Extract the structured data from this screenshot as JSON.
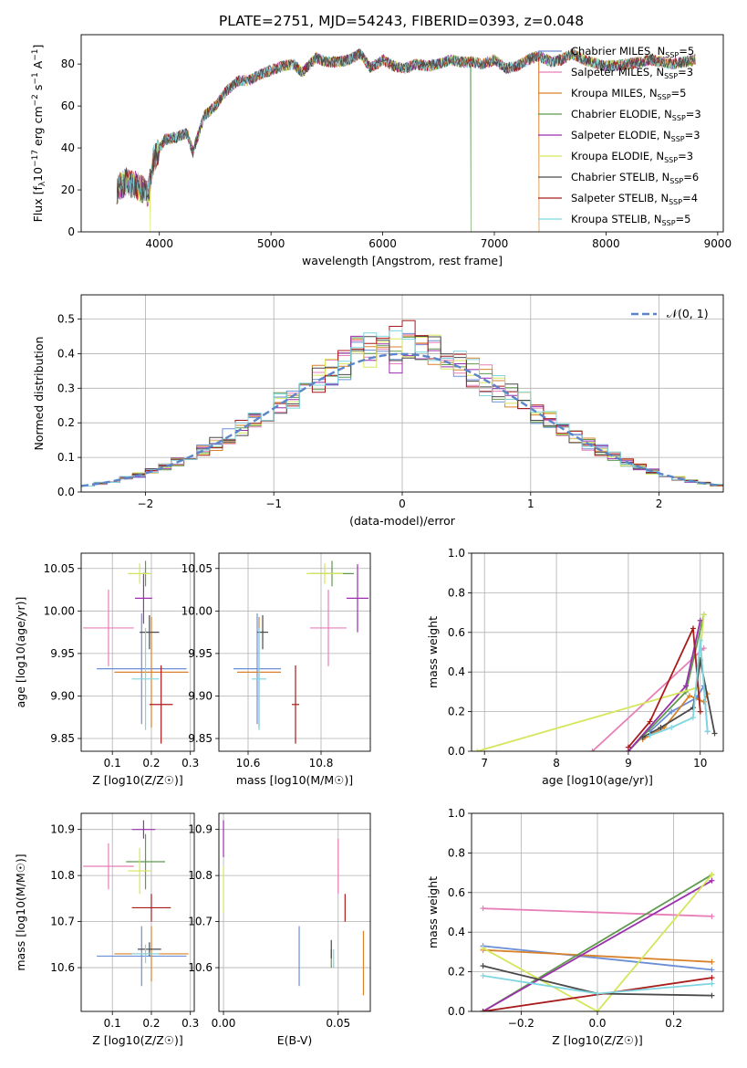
{
  "title": "PLATE=2751, MJD=54243, FIBERID=0393, z=0.048",
  "models": [
    {
      "name": "Chabrier MILES, N",
      "nssp": "5",
      "color": "#6b8fd6"
    },
    {
      "name": "Salpeter MILES, N",
      "nssp": "3",
      "color": "#e87fb8"
    },
    {
      "name": "Kroupa MILES, N",
      "nssp": "5",
      "color": "#d9822b"
    },
    {
      "name": "Chabrier ELODIE, N",
      "nssp": "3",
      "color": "#5f9a4e"
    },
    {
      "name": "Salpeter ELODIE, N",
      "nssp": "3",
      "color": "#9b2fae"
    },
    {
      "name": "Kroupa ELODIE, N",
      "nssp": "3",
      "color": "#d6e65b"
    },
    {
      "name": "Chabrier STELIB, N",
      "nssp": "6",
      "color": "#4a4a4a"
    },
    {
      "name": "Salpeter STELIB, N",
      "nssp": "4",
      "color": "#a81c1c"
    },
    {
      "name": "Kroupa STELIB, N",
      "nssp": "5",
      "color": "#7fd6e0"
    }
  ],
  "nssp_sub": "SSP",
  "chart_data": [
    {
      "id": "spectrum",
      "type": "line",
      "xlabel": "wavelength [Angstrom, rest frame]",
      "ylabel_parts": {
        "pre": "Flux [f",
        "sub1": "λ",
        "mid": "10",
        "sup1": "−17",
        "post1": " erg cm",
        "sup2": "−2",
        "post2": " s",
        "sup3": "−1",
        "post3": " A",
        "sup4": "−1",
        "end": "]"
      },
      "xlim": [
        3300,
        9050
      ],
      "ylim": [
        0,
        94
      ],
      "xticks": [
        "4000",
        "5000",
        "6000",
        "7000",
        "8000",
        "9000"
      ],
      "xtick_values": [
        4000,
        5000,
        6000,
        7000,
        8000,
        9000
      ],
      "yticks": [
        "0",
        "20",
        "40",
        "60",
        "80"
      ],
      "ytick_values": [
        0,
        20,
        40,
        60,
        80
      ],
      "continuum": [
        [
          3620,
          20
        ],
        [
          3700,
          24
        ],
        [
          3800,
          22
        ],
        [
          3900,
          18
        ],
        [
          3950,
          35
        ],
        [
          4050,
          44
        ],
        [
          4150,
          45
        ],
        [
          4250,
          47
        ],
        [
          4300,
          38
        ],
        [
          4400,
          55
        ],
        [
          4500,
          60
        ],
        [
          4600,
          67
        ],
        [
          4700,
          72
        ],
        [
          4800,
          72
        ],
        [
          4900,
          75
        ],
        [
          5000,
          77
        ],
        [
          5100,
          79
        ],
        [
          5200,
          80
        ],
        [
          5280,
          76
        ],
        [
          5400,
          83
        ],
        [
          5500,
          81
        ],
        [
          5600,
          81
        ],
        [
          5700,
          82
        ],
        [
          5800,
          85
        ],
        [
          5890,
          78
        ],
        [
          6000,
          82
        ],
        [
          6100,
          79
        ],
        [
          6200,
          78
        ],
        [
          6300,
          80
        ],
        [
          6400,
          79
        ],
        [
          6500,
          80
        ],
        [
          6600,
          82
        ],
        [
          6700,
          81
        ],
        [
          6800,
          81
        ],
        [
          6900,
          80
        ],
        [
          7000,
          82
        ],
        [
          7100,
          78
        ],
        [
          7200,
          79
        ],
        [
          7300,
          82
        ],
        [
          7400,
          84
        ],
        [
          7500,
          81
        ],
        [
          7600,
          82
        ],
        [
          7700,
          85
        ],
        [
          7800,
          82
        ],
        [
          8000,
          79
        ],
        [
          8200,
          80
        ],
        [
          8400,
          82
        ],
        [
          8600,
          80
        ],
        [
          8800,
          82
        ]
      ],
      "dropouts": [
        {
          "model": 5,
          "x": 3920
        },
        {
          "model": 3,
          "x": 6790
        },
        {
          "model": 2,
          "x": 7400
        }
      ],
      "legend_position": "upper right"
    },
    {
      "id": "residuals",
      "type": "histogram",
      "xlabel": "(data-model)/error",
      "ylabel": "Normed distribution",
      "xlim": [
        -2.5,
        2.5
      ],
      "ylim": [
        0,
        0.57
      ],
      "xticks": [
        "−2",
        "−1",
        "0",
        "1",
        "2"
      ],
      "xtick_values": [
        -2,
        -1,
        0,
        1,
        2
      ],
      "yticks": [
        "0.0",
        "0.1",
        "0.2",
        "0.3",
        "0.4",
        "0.5"
      ],
      "ytick_values": [
        0,
        0.1,
        0.2,
        0.3,
        0.4,
        0.5
      ],
      "bin_width": 0.1,
      "reference_curve": "normal",
      "legend": "𝒩(0, 1)",
      "legend_position": "upper right",
      "grid": true
    },
    {
      "id": "age-vs-Z",
      "type": "errorbar",
      "xlabel": "Z [log10(Z/Z☉)]",
      "ylabel": "age [log10(age/yr)]",
      "xlim": [
        0.02,
        0.31
      ],
      "ylim": [
        9.835,
        10.068
      ],
      "xticks": [
        "0.1",
        "0.2",
        "0.3"
      ],
      "xtick_values": [
        0.1,
        0.2,
        0.3
      ],
      "yticks": [
        "9.85",
        "9.90",
        "9.95",
        "10.00",
        "10.05"
      ],
      "ytick_values": [
        9.85,
        9.9,
        9.95,
        10.0,
        10.05
      ],
      "points": [
        {
          "model": 0,
          "x": 0.175,
          "xerr": 0.115,
          "y": 9.932,
          "yerr": 0.065
        },
        {
          "model": 1,
          "x": 0.09,
          "xerr": 0.065,
          "y": 9.98,
          "yerr": 0.045
        },
        {
          "model": 2,
          "x": 0.2,
          "xerr": 0.095,
          "y": 9.928,
          "yerr": 0.065
        },
        {
          "model": 3,
          "x": 0.185,
          "xerr": 0.008,
          "y": 10.044,
          "yerr": 0.015
        },
        {
          "model": 4,
          "x": 0.18,
          "xerr": 0.022,
          "y": 10.015,
          "yerr": 0.03
        },
        {
          "model": 5,
          "x": 0.17,
          "xerr": 0.03,
          "y": 10.044,
          "yerr": 0.012
        },
        {
          "model": 6,
          "x": 0.195,
          "xerr": 0.025,
          "y": 9.975,
          "yerr": 0.02
        },
        {
          "model": 7,
          "x": 0.225,
          "xerr": 0.03,
          "y": 9.89,
          "yerr": 0.046
        },
        {
          "model": 8,
          "x": 0.185,
          "xerr": 0.035,
          "y": 9.92,
          "yerr": 0.06
        }
      ]
    },
    {
      "id": "age-vs-mass",
      "type": "errorbar",
      "xlabel": "mass [log10(M/M☉)]",
      "ylabel": "",
      "xlim": [
        10.52,
        10.935
      ],
      "ylim": [
        9.835,
        10.068
      ],
      "xticks": [
        "10.6",
        "10.8"
      ],
      "xtick_values": [
        10.6,
        10.8
      ],
      "yticks": [
        "9.85",
        "9.90",
        "9.95",
        "10.00",
        "10.05"
      ],
      "ytick_values": [
        9.85,
        9.9,
        9.95,
        10.0,
        10.05
      ],
      "points": [
        {
          "model": 0,
          "x": 10.625,
          "xerr": 0.065,
          "y": 9.932,
          "yerr": 0.065
        },
        {
          "model": 1,
          "x": 10.82,
          "xerr": 0.05,
          "y": 9.98,
          "yerr": 0.045
        },
        {
          "model": 2,
          "x": 10.63,
          "xerr": 0.06,
          "y": 9.928,
          "yerr": 0.065
        },
        {
          "model": 3,
          "x": 10.83,
          "xerr": 0.06,
          "y": 10.044,
          "yerr": 0.015
        },
        {
          "model": 4,
          "x": 10.9,
          "xerr": 0.03,
          "y": 10.015,
          "yerr": 0.04
        },
        {
          "model": 5,
          "x": 10.81,
          "xerr": 0.05,
          "y": 10.044,
          "yerr": 0.012
        },
        {
          "model": 6,
          "x": 10.64,
          "xerr": 0.015,
          "y": 9.975,
          "yerr": 0.02
        },
        {
          "model": 7,
          "x": 10.73,
          "xerr": 0.01,
          "y": 9.89,
          "yerr": 0.046
        },
        {
          "model": 8,
          "x": 10.63,
          "xerr": 0.02,
          "y": 9.92,
          "yerr": 0.06
        }
      ]
    },
    {
      "id": "massweight-vs-age",
      "type": "line",
      "xlabel": "age [log10(age/yr)]",
      "ylabel": "mass weight",
      "xlim": [
        6.82,
        10.32
      ],
      "ylim": [
        0,
        1
      ],
      "xticks": [
        "7",
        "8",
        "9",
        "10"
      ],
      "xtick_values": [
        7,
        8,
        9,
        10
      ],
      "yticks": [
        "0.0",
        "0.2",
        "0.4",
        "0.6",
        "0.8",
        "1.0"
      ],
      "ytick_values": [
        0,
        0.2,
        0.4,
        0.6,
        0.8,
        1.0
      ],
      "series": [
        {
          "model": 0,
          "x": [
            9.3,
            9.6,
            9.95,
            10.05,
            10.1
          ],
          "y": [
            0.1,
            0.2,
            0.27,
            0.33,
            0.1
          ]
        },
        {
          "model": 1,
          "x": [
            8.5,
            9.9,
            10.05
          ],
          "y": [
            0,
            0.47,
            0.52
          ]
        },
        {
          "model": 2,
          "x": [
            9.2,
            9.5,
            9.85,
            10.05,
            10.1
          ],
          "y": [
            0.06,
            0.12,
            0.28,
            0.25,
            0.29
          ]
        },
        {
          "model": 3,
          "x": [
            9.0,
            9.8,
            10.05
          ],
          "y": [
            0,
            0.3,
            0.69
          ]
        },
        {
          "model": 4,
          "x": [
            9.0,
            9.8,
            10.0
          ],
          "y": [
            0,
            0.33,
            0.66
          ]
        },
        {
          "model": 5,
          "x": [
            6.9,
            9.95,
            10.05
          ],
          "y": [
            0,
            0.32,
            0.69
          ]
        },
        {
          "model": 6,
          "x": [
            9.2,
            9.45,
            9.9,
            10.0,
            10.2
          ],
          "y": [
            0.07,
            0.12,
            0.22,
            0.46,
            0.09
          ]
        },
        {
          "model": 7,
          "x": [
            9.0,
            9.3,
            9.9,
            10.0
          ],
          "y": [
            0.02,
            0.15,
            0.62,
            0.2
          ]
        },
        {
          "model": 8,
          "x": [
            9.3,
            9.6,
            9.9,
            10.0,
            10.1
          ],
          "y": [
            0.08,
            0.12,
            0.17,
            0.56,
            0.1
          ]
        }
      ]
    },
    {
      "id": "mass-vs-Z",
      "type": "errorbar",
      "xlabel": "Z [log10(Z/Z☉)]",
      "ylabel": "mass [log10(M/M☉)]",
      "xlim": [
        0.02,
        0.31
      ],
      "ylim": [
        10.505,
        10.935
      ],
      "xticks": [
        "0.1",
        "0.2",
        "0.3"
      ],
      "xtick_values": [
        0.1,
        0.2,
        0.3
      ],
      "yticks": [
        "10.6",
        "10.7",
        "10.8",
        "10.9"
      ],
      "ytick_values": [
        10.6,
        10.7,
        10.8,
        10.9
      ],
      "points": [
        {
          "model": 0,
          "x": 0.175,
          "xerr": 0.115,
          "y": 10.625,
          "yerr": 0.065
        },
        {
          "model": 1,
          "x": 0.09,
          "xerr": 0.065,
          "y": 10.82,
          "yerr": 0.05
        },
        {
          "model": 2,
          "x": 0.2,
          "xerr": 0.095,
          "y": 10.63,
          "yerr": 0.06
        },
        {
          "model": 3,
          "x": 0.185,
          "xerr": 0.05,
          "y": 10.83,
          "yerr": 0.06
        },
        {
          "model": 4,
          "x": 0.18,
          "xerr": 0.03,
          "y": 10.9,
          "yerr": 0.02
        },
        {
          "model": 5,
          "x": 0.17,
          "xerr": 0.03,
          "y": 10.81,
          "yerr": 0.05
        },
        {
          "model": 6,
          "x": 0.195,
          "xerr": 0.03,
          "y": 10.64,
          "yerr": 0.015
        },
        {
          "model": 7,
          "x": 0.2,
          "xerr": 0.05,
          "y": 10.73,
          "yerr": 0.03
        },
        {
          "model": 8,
          "x": 0.185,
          "xerr": 0.035,
          "y": 10.63,
          "yerr": 0.02
        }
      ]
    },
    {
      "id": "mass-vs-EBV",
      "type": "errorbar",
      "xlabel": "E(B-V)",
      "ylabel": "",
      "xlim": [
        -0.002,
        0.064
      ],
      "ylim": [
        10.505,
        10.935
      ],
      "xticks": [
        "0.00",
        "0.05"
      ],
      "xtick_values": [
        0.0,
        0.05
      ],
      "yticks": [
        "10.6",
        "10.7",
        "10.8",
        "10.9"
      ],
      "ytick_values": [
        10.6,
        10.7,
        10.8,
        10.9
      ],
      "points": [
        {
          "model": 0,
          "x": 0.033,
          "xerr": 0,
          "y": 10.625,
          "yerr": 0.065
        },
        {
          "model": 1,
          "x": 0.05,
          "xerr": 0,
          "y": 10.82,
          "yerr": 0.06
        },
        {
          "model": 2,
          "x": 0.061,
          "xerr": 0,
          "y": 10.61,
          "yerr": 0.07
        },
        {
          "model": 3,
          "x": 0.047,
          "xerr": 0,
          "y": 10.62,
          "yerr": 0.02
        },
        {
          "model": 4,
          "x": 0.0,
          "xerr": 0,
          "y": 10.88,
          "yerr": 0.04
        },
        {
          "model": 5,
          "x": 0.0,
          "xerr": 0,
          "y": 10.77,
          "yerr": 0.05
        },
        {
          "model": 6,
          "x": 0.047,
          "xerr": 0,
          "y": 10.64,
          "yerr": 0.02
        },
        {
          "model": 7,
          "x": 0.053,
          "xerr": 0,
          "y": 10.73,
          "yerr": 0.03
        },
        {
          "model": 8,
          "x": 0.048,
          "xerr": 0,
          "y": 10.62,
          "yerr": 0.02
        }
      ]
    },
    {
      "id": "massweight-vs-Z",
      "type": "line",
      "xlabel": "Z [log10(Z/Z☉)]",
      "ylabel": "mass weight",
      "xlim": [
        -0.33,
        0.33
      ],
      "ylim": [
        0,
        1
      ],
      "xticks": [
        "−0.2",
        "0.0",
        "0.2"
      ],
      "xtick_values": [
        -0.2,
        0.0,
        0.2
      ],
      "yticks": [
        "0.0",
        "0.2",
        "0.4",
        "0.6",
        "0.8",
        "1.0"
      ],
      "ytick_values": [
        0,
        0.2,
        0.4,
        0.6,
        0.8,
        1.0
      ],
      "series": [
        {
          "model": 0,
          "x": [
            -0.3,
            0.3
          ],
          "y": [
            0.33,
            0.21
          ]
        },
        {
          "model": 1,
          "x": [
            -0.3,
            0.3
          ],
          "y": [
            0.52,
            0.48
          ]
        },
        {
          "model": 2,
          "x": [
            -0.3,
            0.3
          ],
          "y": [
            0.31,
            0.25
          ]
        },
        {
          "model": 3,
          "x": [
            -0.3,
            0.3
          ],
          "y": [
            0.0,
            0.69
          ]
        },
        {
          "model": 4,
          "x": [
            -0.3,
            0.3
          ],
          "y": [
            0.0,
            0.66
          ]
        },
        {
          "model": 5,
          "x": [
            -0.3,
            0.0,
            0.3
          ],
          "y": [
            0.32,
            0.0,
            0.69
          ]
        },
        {
          "model": 6,
          "x": [
            -0.3,
            0.0,
            0.3
          ],
          "y": [
            0.23,
            0.09,
            0.08
          ]
        },
        {
          "model": 7,
          "x": [
            -0.3,
            0.3
          ],
          "y": [
            0.0,
            0.17
          ]
        },
        {
          "model": 8,
          "x": [
            -0.3,
            0.0,
            0.3
          ],
          "y": [
            0.18,
            0.09,
            0.14
          ]
        }
      ]
    }
  ]
}
